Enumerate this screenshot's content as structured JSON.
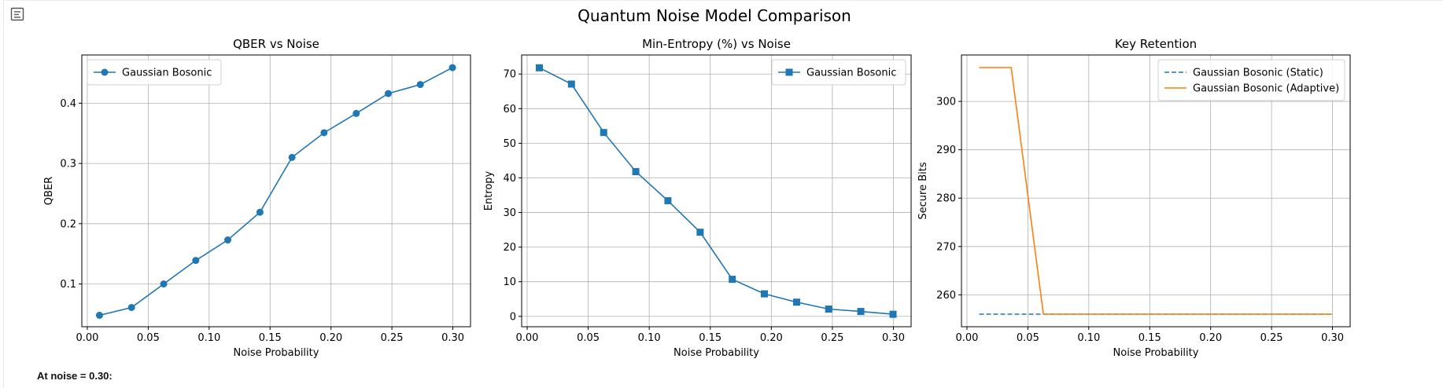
{
  "figure": {
    "suptitle": "Quantum Noise Model Comparison",
    "toolbar_icon": "output-collapse-icon"
  },
  "output": {
    "text": "At noise = 0.30:"
  },
  "colors": {
    "blue": "#1f77b4",
    "orange": "#ff7f0e",
    "grid": "#b0b0b0"
  },
  "chart_data": [
    {
      "type": "line",
      "title": "QBER vs Noise",
      "xlabel": "Noise Probability",
      "ylabel": "QBER",
      "xlim": [
        -0.0045,
        0.3145
      ],
      "ylim": [
        0.029,
        0.48
      ],
      "xticks": [
        0.0,
        0.05,
        0.1,
        0.15,
        0.2,
        0.25,
        0.3
      ],
      "xtick_labels": [
        "0.00",
        "0.05",
        "0.10",
        "0.15",
        "0.20",
        "0.25",
        "0.30"
      ],
      "yticks": [
        0.1,
        0.2,
        0.3,
        0.4
      ],
      "ytick_labels": [
        "0.1",
        "0.2",
        "0.3",
        "0.4"
      ],
      "grid": true,
      "legend": "upper-left",
      "x": [
        0.01,
        0.0363,
        0.0627,
        0.089,
        0.1153,
        0.1417,
        0.168,
        0.1943,
        0.2207,
        0.247,
        0.2733,
        0.2997
      ],
      "series": [
        {
          "name": "Gaussian Bosonic",
          "marker": "circle",
          "style": "solid",
          "color": "#1f77b4",
          "values": [
            0.048,
            0.061,
            0.1,
            0.139,
            0.173,
            0.219,
            0.31,
            0.351,
            0.383,
            0.416,
            0.431,
            0.459
          ]
        }
      ]
    },
    {
      "type": "line",
      "title": "Min-Entropy (%) vs Noise",
      "xlabel": "Noise Probability",
      "ylabel": "Entropy",
      "xlim": [
        -0.0045,
        0.3145
      ],
      "ylim": [
        -3.0,
        75.5
      ],
      "xticks": [
        0.0,
        0.05,
        0.1,
        0.15,
        0.2,
        0.25,
        0.3
      ],
      "xtick_labels": [
        "0.00",
        "0.05",
        "0.10",
        "0.15",
        "0.20",
        "0.25",
        "0.30"
      ],
      "yticks": [
        0,
        10,
        20,
        30,
        40,
        50,
        60,
        70
      ],
      "ytick_labels": [
        "0",
        "10",
        "20",
        "30",
        "40",
        "50",
        "60",
        "70"
      ],
      "grid": true,
      "legend": "upper-right",
      "x": [
        0.01,
        0.0363,
        0.0627,
        0.089,
        0.1153,
        0.1417,
        0.168,
        0.1943,
        0.2207,
        0.247,
        0.2733,
        0.2997
      ],
      "series": [
        {
          "name": "Gaussian Bosonic",
          "marker": "square",
          "style": "solid",
          "color": "#1f77b4",
          "values": [
            71.8,
            67.1,
            53.1,
            41.8,
            33.4,
            24.3,
            10.7,
            6.5,
            4.1,
            2.1,
            1.4,
            0.6
          ]
        }
      ]
    },
    {
      "type": "line",
      "title": "Key Retention",
      "xlabel": "Noise Probability",
      "ylabel": "Secure Bits",
      "xlim": [
        -0.0045,
        0.3145
      ],
      "ylim": [
        253.4,
        309.6
      ],
      "xticks": [
        0.0,
        0.05,
        0.1,
        0.15,
        0.2,
        0.25,
        0.3
      ],
      "xtick_labels": [
        "0.00",
        "0.05",
        "0.10",
        "0.15",
        "0.20",
        "0.25",
        "0.30"
      ],
      "yticks": [
        260,
        270,
        280,
        290,
        300
      ],
      "ytick_labels": [
        "260",
        "270",
        "280",
        "290",
        "300"
      ],
      "grid": true,
      "legend": "upper-right",
      "x": [
        0.01,
        0.0363,
        0.0627,
        0.089,
        0.1153,
        0.1417,
        0.168,
        0.1943,
        0.2207,
        0.247,
        0.2733,
        0.2997
      ],
      "series": [
        {
          "name": "Gaussian Bosonic (Static)",
          "marker": "none",
          "style": "dashed",
          "color": "#1f77b4",
          "values": [
            256,
            256,
            256,
            256,
            256,
            256,
            256,
            256,
            256,
            256,
            256,
            256
          ]
        },
        {
          "name": "Gaussian Bosonic (Adaptive)",
          "marker": "none",
          "style": "solid",
          "color": "#ff7f0e",
          "values": [
            307,
            307,
            256,
            256,
            256,
            256,
            256,
            256,
            256,
            256,
            256,
            256
          ]
        }
      ]
    }
  ]
}
